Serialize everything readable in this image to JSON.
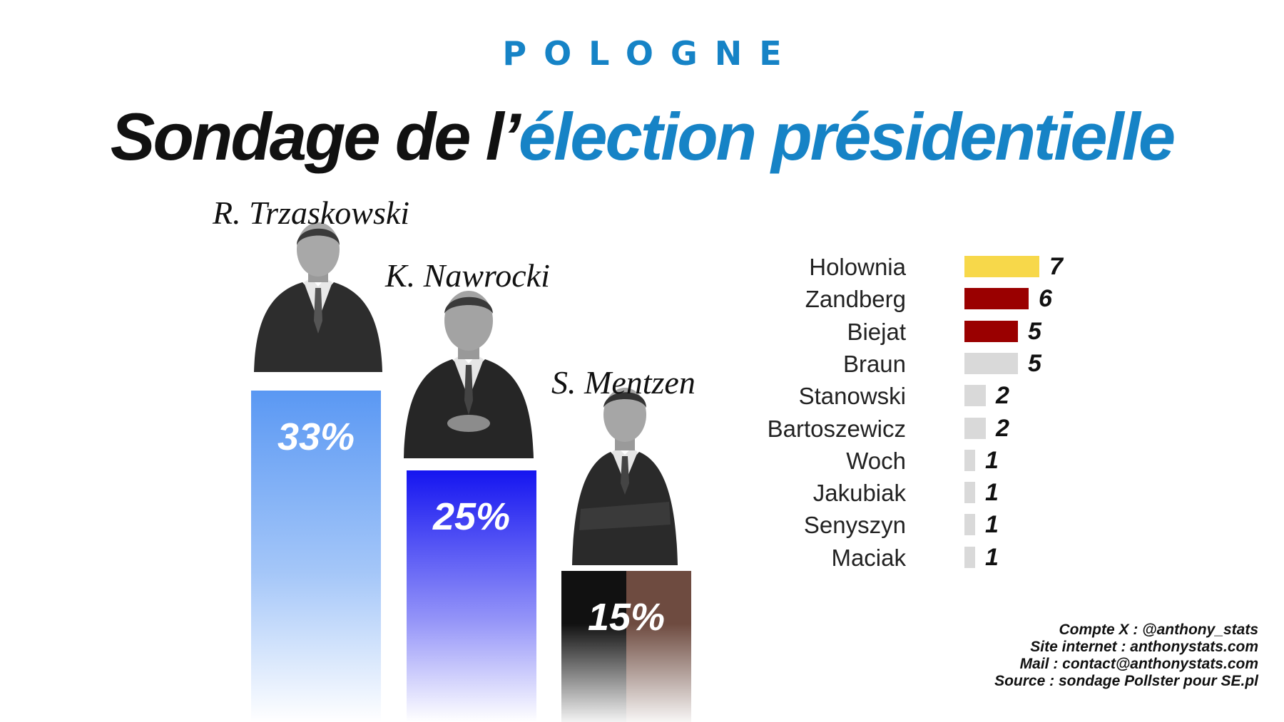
{
  "header": {
    "kicker": "POLOGNE",
    "title_main": "Sondage de l’",
    "title_accent": "élection présidentielle"
  },
  "colors": {
    "accent": "#1683c6",
    "trzaskowski_bar": "#5a98f3",
    "nawrocki_bar": "#1515f0",
    "mentzen_bar_left": "#111111",
    "mentzen_bar_right": "#6e4b40",
    "yellow": "#f7d84a",
    "dark_red": "#9a0000",
    "grey": "#d9d9d9"
  },
  "chart_data": [
    {
      "type": "bar",
      "series": [
        {
          "values": [
            33,
            25,
            15
          ]
        }
      ],
      "categories": [
        "R. Trzaskowski",
        "K. Nawrocki",
        "S. Mentzen"
      ],
      "data_labels": [
        "33%",
        "25%",
        "15%"
      ],
      "ylabel": "",
      "xlabel": ""
    },
    {
      "type": "bar",
      "orientation": "horizontal",
      "categories": [
        "Holownia",
        "Zandberg",
        "Biejat",
        "Braun",
        "Stanowski",
        "Bartoszewicz",
        "Woch",
        "Jakubiak",
        "Senyszyn",
        "Maciak"
      ],
      "values": [
        7,
        6,
        5,
        5,
        2,
        2,
        1,
        1,
        1,
        1
      ],
      "bar_colors": [
        "yellow",
        "dark_red",
        "dark_red",
        "grey",
        "grey",
        "grey",
        "grey",
        "grey",
        "grey",
        "grey"
      ]
    }
  ],
  "credits": [
    "Compte X : @anthony_stats",
    "Site internet : anthonystats.com",
    "Mail : contact@anthonystats.com",
    "Source : sondage Pollster pour SE.pl"
  ]
}
